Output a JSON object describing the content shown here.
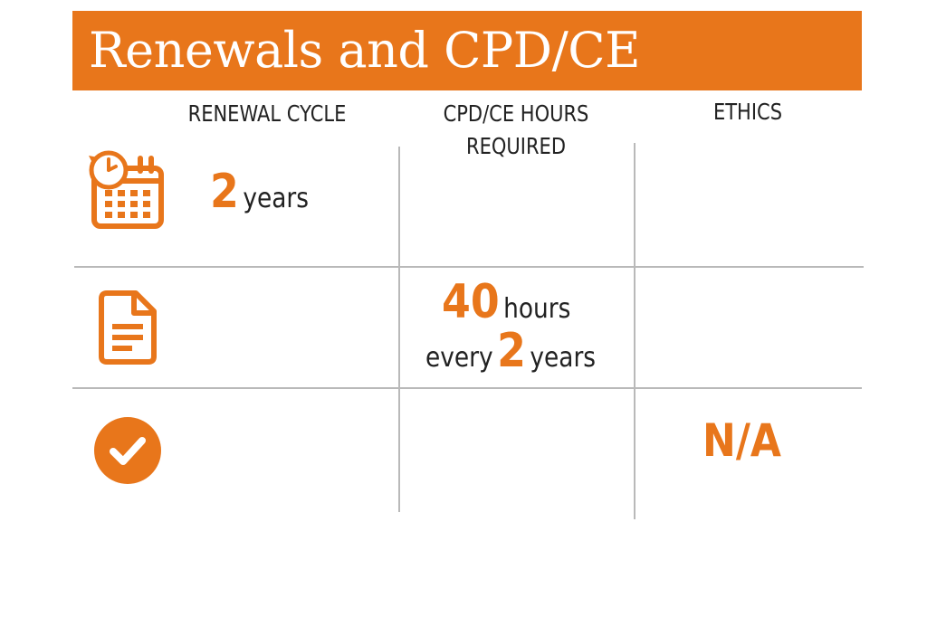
{
  "title": "Renewals and CPD/CE",
  "columns": {
    "renewal": "RENEWAL CYCLE",
    "cpd_line1": "CPD/CE HOURS",
    "cpd_line2": "REQUIRED",
    "ethics": "ETHICS"
  },
  "rows": {
    "renewal": {
      "icon": "calendar-clock-icon",
      "value": "2",
      "unit": "years"
    },
    "cpd": {
      "icon": "document-icon",
      "hours_value": "40",
      "hours_unit": "hours",
      "every_label": "every",
      "years_value": "2",
      "years_unit": "years"
    },
    "ethics": {
      "icon": "checkmark-circle-icon",
      "value": "N/A"
    }
  },
  "colors": {
    "accent": "#E8761B",
    "text": "#222222",
    "grid": "#b9b9b9"
  }
}
